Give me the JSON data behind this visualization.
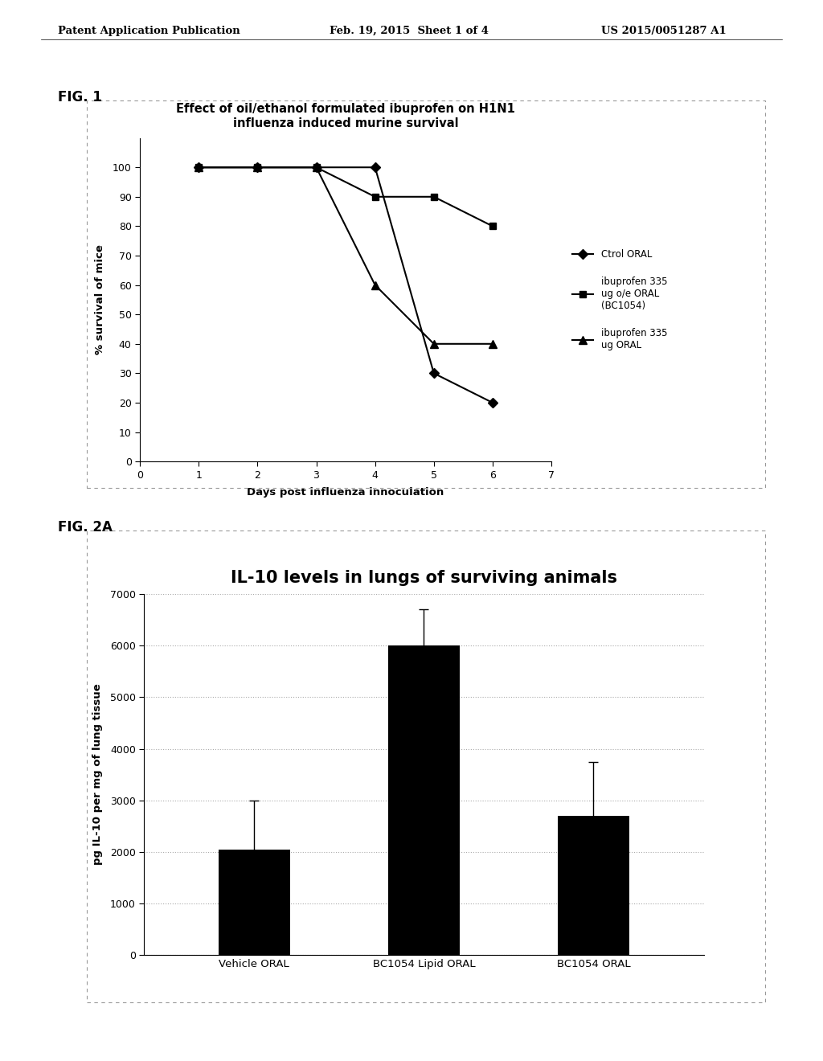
{
  "fig1": {
    "title_line1": "Effect of oil/ethanol formulated ibuprofen on H1N1",
    "title_line2": "influenza induced murine survival",
    "xlabel": "Days post influenza innoculation",
    "ylabel": "% survival of mice",
    "xlim": [
      0,
      7
    ],
    "ylim": [
      0,
      110
    ],
    "xticks": [
      0,
      1,
      2,
      3,
      4,
      5,
      6,
      7
    ],
    "yticks": [
      0,
      10,
      20,
      30,
      40,
      50,
      60,
      70,
      80,
      90,
      100
    ],
    "series": [
      {
        "label": "Ctrol ORAL",
        "x": [
          1,
          2,
          3,
          4,
          5,
          6
        ],
        "y": [
          100,
          100,
          100,
          100,
          30,
          20
        ],
        "marker": "D",
        "markersize": 6,
        "linestyle": "-",
        "linewidth": 1.5
      },
      {
        "label": "ibuprofen 335\nug o/e ORAL\n(BC1054)",
        "x": [
          1,
          2,
          3,
          4,
          5,
          6
        ],
        "y": [
          100,
          100,
          100,
          90,
          90,
          80
        ],
        "marker": "s",
        "markersize": 6,
        "linestyle": "-",
        "linewidth": 1.5
      },
      {
        "label": "ibuprofen 335\nug ORAL",
        "x": [
          1,
          2,
          3,
          4,
          5,
          6
        ],
        "y": [
          100,
          100,
          100,
          60,
          40,
          40
        ],
        "marker": "^",
        "markersize": 7,
        "linestyle": "-",
        "linewidth": 1.5
      }
    ],
    "legend_labels": [
      "Ctrol ORAL",
      "ibuprofen 335\nug o/e ORAL\n(BC1054)",
      "ibuprofen 335\nug ORAL"
    ],
    "legend_markers": [
      "D",
      "s",
      "^"
    ],
    "legend_markersizes": [
      6,
      6,
      7
    ],
    "fig_label": "FIG. 1",
    "background_color": "#ffffff"
  },
  "fig2a": {
    "title": "IL-10 levels in lungs of surviving animals",
    "ylabel": "pg IL-10 per mg of lung tissue",
    "ylim": [
      0,
      7000
    ],
    "yticks": [
      0,
      1000,
      2000,
      3000,
      4000,
      5000,
      6000,
      7000
    ],
    "categories": [
      "Vehicle ORAL",
      "BC1054 Lipid ORAL",
      "BC1054 ORAL"
    ],
    "values": [
      2050,
      6000,
      2700
    ],
    "errors": [
      950,
      700,
      1050
    ],
    "bar_color": "#000000",
    "fig_label": "FIG. 2A",
    "background_color": "#ffffff"
  },
  "header_left": "Patent Application Publication",
  "header_center": "Feb. 19, 2015  Sheet 1 of 4",
  "header_right": "US 2015/0051287 A1"
}
